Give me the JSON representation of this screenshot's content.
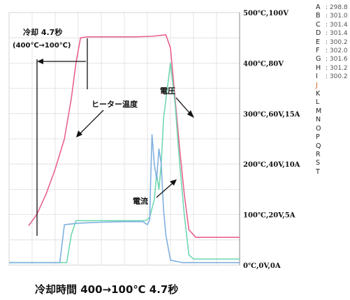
{
  "chart_data": {
    "type": "line",
    "title": "冷却時間 400→100℃ 4.7秒",
    "y_axis_labels": [
      "500℃,100V",
      "400℃,80V",
      "300℃,60V,15A",
      "200℃,40V,10A",
      "100℃,20V,5A",
      "0℃,0V,0A"
    ],
    "ylim": [
      0,
      500
    ],
    "grid": true,
    "series": [
      {
        "name": "ヒーター温度",
        "color": "#e8638d",
        "points": [
          [
            0.085,
            78
          ],
          [
            0.12,
            100
          ],
          [
            0.16,
            140
          ],
          [
            0.2,
            190
          ],
          [
            0.24,
            250
          ],
          [
            0.27,
            330
          ],
          [
            0.29,
            400
          ],
          [
            0.31,
            450
          ],
          [
            0.34,
            452
          ],
          [
            0.45,
            452
          ],
          [
            0.55,
            452
          ],
          [
            0.62,
            453
          ],
          [
            0.68,
            456
          ],
          [
            0.7,
            430
          ],
          [
            0.72,
            330
          ],
          [
            0.74,
            230
          ],
          [
            0.76,
            140
          ],
          [
            0.78,
            70
          ],
          [
            0.81,
            55
          ],
          [
            1.0,
            55
          ]
        ]
      },
      {
        "name": "電圧",
        "color": "#6fd8b0",
        "points": [
          [
            0.0,
            5
          ],
          [
            0.25,
            5
          ],
          [
            0.27,
            60
          ],
          [
            0.29,
            88
          ],
          [
            0.35,
            88
          ],
          [
            0.45,
            88
          ],
          [
            0.55,
            88
          ],
          [
            0.59,
            88
          ],
          [
            0.6,
            90
          ],
          [
            0.61,
            95
          ],
          [
            0.63,
            130
          ],
          [
            0.64,
            180
          ],
          [
            0.65,
            150
          ],
          [
            0.66,
            200
          ],
          [
            0.67,
            290
          ],
          [
            0.7,
            400
          ],
          [
            0.72,
            320
          ],
          [
            0.74,
            200
          ],
          [
            0.76,
            100
          ],
          [
            0.78,
            20
          ],
          [
            0.8,
            12
          ],
          [
            1.0,
            12
          ]
        ]
      },
      {
        "name": "電流",
        "color": "#7fb0e0",
        "points": [
          [
            0.0,
            5
          ],
          [
            0.22,
            5
          ],
          [
            0.24,
            80
          ],
          [
            0.3,
            83
          ],
          [
            0.4,
            85
          ],
          [
            0.5,
            86
          ],
          [
            0.58,
            86
          ],
          [
            0.6,
            80
          ],
          [
            0.61,
            90
          ],
          [
            0.615,
            180
          ],
          [
            0.62,
            258
          ],
          [
            0.63,
            200
          ],
          [
            0.64,
            170
          ],
          [
            0.65,
            230
          ],
          [
            0.66,
            200
          ],
          [
            0.67,
            110
          ],
          [
            0.68,
            60
          ],
          [
            0.7,
            10
          ],
          [
            0.75,
            5
          ],
          [
            1.0,
            5
          ]
        ]
      }
    ],
    "annotations": [
      {
        "text": "冷却 4.7秒",
        "label": "cooling-time-label"
      },
      {
        "text": "(400℃→100℃)",
        "label": "cooling-range-label"
      },
      {
        "text": "ヒーター温度",
        "label": "heater-temp-label"
      },
      {
        "text": "電圧",
        "label": "voltage-label"
      },
      {
        "text": "電流",
        "label": "current-label"
      }
    ]
  },
  "channels": [
    {
      "letter": "A",
      "value": ": 298.8"
    },
    {
      "letter": "B",
      "value": ": 301.0"
    },
    {
      "letter": "C",
      "value": ": 301.4"
    },
    {
      "letter": "D",
      "value": ": 301.4"
    },
    {
      "letter": "E",
      "value": ": 300.2"
    },
    {
      "letter": "F",
      "value": ": 302.0"
    },
    {
      "letter": "G",
      "value": ": 301.6"
    },
    {
      "letter": "H",
      "value": ": 301.2"
    },
    {
      "letter": "I",
      "value": ": 300.2"
    },
    {
      "letter": "J",
      "value": ""
    },
    {
      "letter": "K",
      "value": ""
    },
    {
      "letter": "L",
      "value": ""
    },
    {
      "letter": "M",
      "value": ""
    },
    {
      "letter": "N",
      "value": ""
    },
    {
      "letter": "O",
      "value": ""
    },
    {
      "letter": "P",
      "value": ""
    },
    {
      "letter": "Q",
      "value": ""
    },
    {
      "letter": "R",
      "value": ""
    },
    {
      "letter": "S",
      "value": ""
    },
    {
      "letter": "T",
      "value": ""
    }
  ],
  "active_channel": "J",
  "caption": "冷却時間 400→100℃ 4.7秒"
}
